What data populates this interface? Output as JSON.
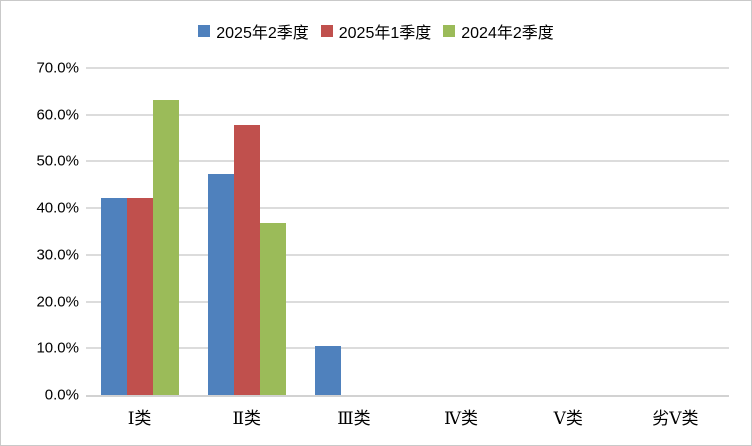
{
  "chart_data": {
    "type": "bar",
    "categories": [
      "Ⅰ类",
      "Ⅱ类",
      "Ⅲ类",
      "Ⅳ类",
      "Ⅴ类",
      "劣Ⅴ类"
    ],
    "series": [
      {
        "name": "2025年2季度",
        "color": "#4F81BD",
        "values": [
          42.1,
          47.4,
          10.5,
          0,
          0,
          0
        ]
      },
      {
        "name": "2025年1季度",
        "color": "#C0504D",
        "values": [
          42.1,
          57.9,
          0,
          0,
          0,
          0
        ]
      },
      {
        "name": "2024年2季度",
        "color": "#9BBB59",
        "values": [
          63.2,
          36.8,
          0,
          0,
          0,
          0
        ]
      }
    ],
    "title": "",
    "xlabel": "",
    "ylabel": "",
    "ylim": [
      0,
      70
    ],
    "ytick_step": 10,
    "ytick_labels": [
      "0.0%",
      "10.0%",
      "20.0%",
      "30.0%",
      "40.0%",
      "50.0%",
      "60.0%",
      "70.0%"
    ],
    "grid": true,
    "legend_position": "top-center",
    "colors": {
      "gridline": "#DCDCDC",
      "axis_line": "#D2D2D2",
      "chart_border": "#C9C9C9",
      "background": "#FFFFFF",
      "text": "#000000"
    }
  }
}
